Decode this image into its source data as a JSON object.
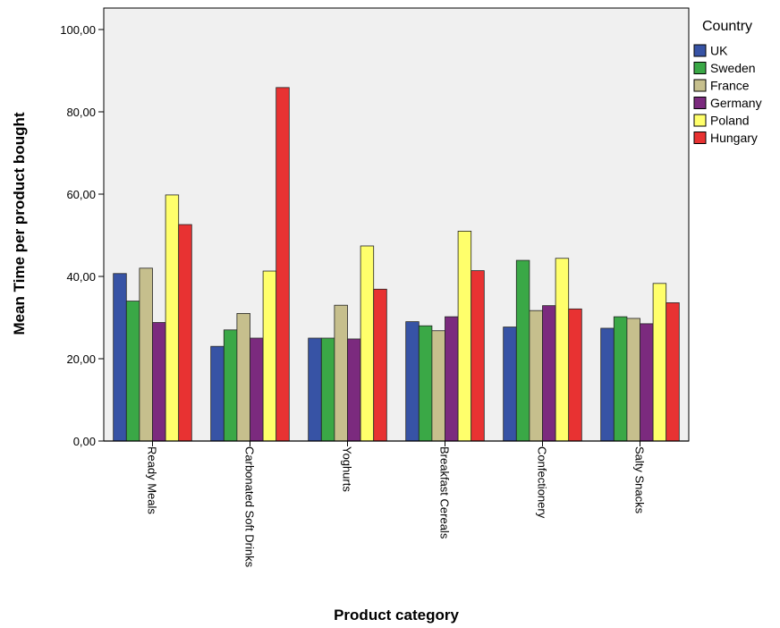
{
  "chart_data": {
    "type": "bar",
    "xlabel": "Product category",
    "ylabel": "Mean Time per product bought",
    "ylim": [
      0,
      100
    ],
    "yticks": [
      "0,00",
      "20,00",
      "40,00",
      "60,00",
      "80,00",
      "100,00"
    ],
    "grid": false,
    "legend_title": "Country",
    "legend_position": "right",
    "categories": [
      "Ready Meals",
      "Carbonated Soft Drinks",
      "Yoghurts",
      "Breakfast Cereals",
      "Confectionery",
      "Salty Snacks"
    ],
    "series": [
      {
        "name": "UK",
        "color": "#3753a5",
        "values": [
          40.7,
          23.0,
          25.0,
          29.0,
          27.7,
          27.4
        ]
      },
      {
        "name": "Sweden",
        "color": "#3aa846",
        "values": [
          34.0,
          27.0,
          25.0,
          28.0,
          43.9,
          30.2
        ]
      },
      {
        "name": "France",
        "color": "#c6bf8d",
        "values": [
          42.0,
          31.0,
          33.0,
          26.8,
          31.7,
          29.8
        ]
      },
      {
        "name": "Germany",
        "color": "#7b2a7e",
        "values": [
          28.8,
          25.0,
          24.8,
          30.2,
          32.9,
          28.5
        ]
      },
      {
        "name": "Poland",
        "color": "#ffff6b",
        "values": [
          59.8,
          41.3,
          47.4,
          51.0,
          44.4,
          38.3
        ]
      },
      {
        "name": "Hungary",
        "color": "#e83232",
        "values": [
          52.6,
          85.9,
          36.9,
          41.4,
          32.1,
          33.6
        ]
      }
    ]
  }
}
